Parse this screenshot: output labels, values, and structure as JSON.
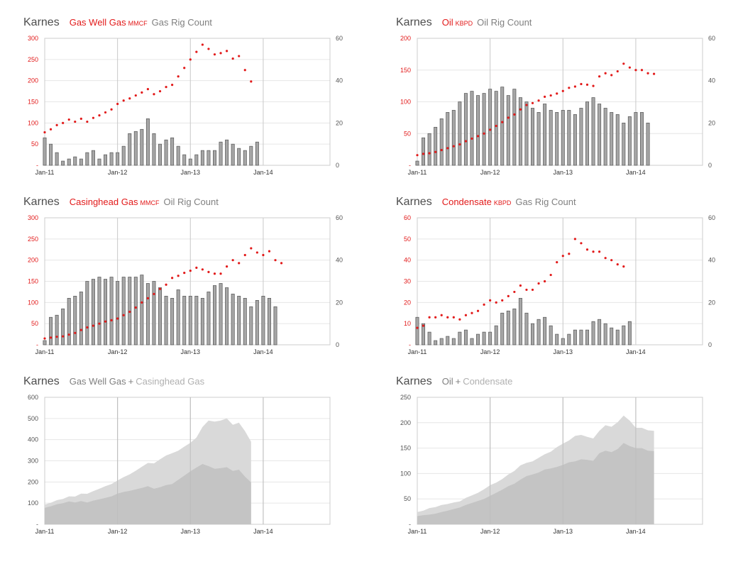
{
  "colors": {
    "red": "#e21a1a",
    "bar": "#a6a6a6",
    "bar_edge": "#555555",
    "area_back": "#d9d9d9",
    "area_front": "#c4c4c4",
    "grid": "#e6e6e6",
    "frame": "#cccccc"
  },
  "x_ticks": [
    "Jan-11",
    "Jan-12",
    "Jan-13",
    "Jan-14"
  ],
  "panels": [
    {
      "place": "Karnes",
      "series1": "Gas Well Gas",
      "unit1": "MMCF",
      "series2": "Gas Rig Count",
      "left_ticks": [
        "300",
        "250",
        "200",
        "150",
        "100",
        "50",
        "-"
      ],
      "right_ticks": [
        "60",
        "40",
        "20",
        "0"
      ]
    },
    {
      "place": "Karnes",
      "series1": "Oil",
      "unit1": "KBPD",
      "series2": "Oil Rig Count",
      "left_ticks": [
        "200",
        "150",
        "100",
        "50",
        "-"
      ],
      "right_ticks": [
        "60",
        "40",
        "20",
        "0"
      ]
    },
    {
      "place": "Karnes",
      "series1": "Casinghead Gas",
      "unit1": "MMCF",
      "series2": "Oil Rig Count",
      "left_ticks": [
        "300",
        "250",
        "200",
        "150",
        "100",
        "50",
        "-"
      ],
      "right_ticks": [
        "60",
        "40",
        "20",
        "0"
      ]
    },
    {
      "place": "Karnes",
      "series1": "Condensate",
      "unit1": "KBPD",
      "series2": "Gas Rig Count",
      "left_ticks": [
        "60",
        "50",
        "40",
        "30",
        "20",
        "10",
        "-"
      ],
      "right_ticks": [
        "60",
        "40",
        "20",
        "0"
      ]
    },
    {
      "place": "Karnes",
      "series1": "Gas Well Gas",
      "plus": "+",
      "series2": "Casinghead Gas",
      "left_ticks": [
        "600",
        "500",
        "400",
        "300",
        "200",
        "100",
        "-"
      ]
    },
    {
      "place": "Karnes",
      "series1": "Oil",
      "plus": "+",
      "series2": "Condensate",
      "left_ticks": [
        "250",
        "200",
        "150",
        "100",
        "50",
        "-"
      ]
    }
  ],
  "chart_data": [
    {
      "type": "bar+scatter",
      "title": "Gas Well Gas MMCF / Gas Rig Count",
      "x_start": "2011-01",
      "xlim_months": [
        0,
        47
      ],
      "ylim_left": [
        0,
        300
      ],
      "ylim_right": [
        0,
        60
      ],
      "series": [
        {
          "name": "Gas Rig Count",
          "axis": "right",
          "kind": "bar",
          "values": [
            13,
            10,
            6,
            2,
            3,
            4,
            3,
            6,
            7,
            3,
            5,
            6,
            6,
            9,
            15,
            16,
            17,
            22,
            15,
            10,
            12,
            13,
            9,
            5,
            3,
            5,
            7,
            7,
            7,
            11,
            12,
            10,
            8,
            7,
            9,
            11
          ]
        },
        {
          "name": "Gas Well Gas",
          "axis": "left",
          "kind": "dot",
          "values": [
            78,
            85,
            95,
            100,
            108,
            103,
            110,
            103,
            112,
            118,
            125,
            132,
            145,
            153,
            158,
            165,
            172,
            180,
            168,
            175,
            185,
            190,
            210,
            230,
            250,
            268,
            285,
            275,
            262,
            265,
            270,
            252,
            258,
            225,
            198
          ]
        }
      ]
    },
    {
      "type": "bar+scatter",
      "title": "Oil KBPD / Oil Rig Count",
      "x_start": "2011-01",
      "xlim_months": [
        0,
        47
      ],
      "ylim_left": [
        0,
        200
      ],
      "ylim_right": [
        0,
        60
      ],
      "series": [
        {
          "name": "Oil Rig Count",
          "axis": "right",
          "kind": "bar",
          "values": [
            2,
            13,
            15,
            18,
            22,
            25,
            26,
            30,
            34,
            35,
            33,
            34,
            36,
            35,
            37,
            33,
            36,
            32,
            30,
            27,
            25,
            29,
            26,
            25,
            26,
            26,
            24,
            27,
            30,
            32,
            29,
            27,
            25,
            24,
            20,
            23,
            25,
            25,
            20
          ]
        },
        {
          "name": "Oil",
          "axis": "left",
          "kind": "dot",
          "values": [
            16,
            18,
            19,
            21,
            24,
            27,
            30,
            33,
            38,
            42,
            46,
            50,
            56,
            62,
            68,
            75,
            80,
            88,
            95,
            98,
            102,
            108,
            110,
            113,
            117,
            122,
            124,
            128,
            127,
            125,
            140,
            145,
            142,
            148,
            160,
            154,
            150,
            150,
            145,
            144
          ]
        }
      ]
    },
    {
      "type": "bar+scatter",
      "title": "Casinghead Gas MMCF / Oil Rig Count",
      "x_start": "2011-01",
      "xlim_months": [
        0,
        47
      ],
      "ylim_left": [
        0,
        300
      ],
      "ylim_right": [
        0,
        60
      ],
      "series": [
        {
          "name": "Oil Rig Count",
          "axis": "right",
          "kind": "bar",
          "values": [
            2,
            13,
            14,
            17,
            22,
            23,
            25,
            30,
            31,
            32,
            31,
            32,
            30,
            32,
            32,
            32,
            33,
            29,
            30,
            27,
            23,
            22,
            26,
            23,
            23,
            23,
            22,
            25,
            28,
            29,
            27,
            24,
            23,
            22,
            18,
            21,
            23,
            22,
            18
          ]
        },
        {
          "name": "Casinghead Gas",
          "axis": "left",
          "kind": "dot",
          "values": [
            15,
            17,
            19,
            20,
            24,
            28,
            35,
            41,
            45,
            50,
            55,
            58,
            62,
            70,
            78,
            88,
            100,
            110,
            120,
            132,
            142,
            158,
            163,
            170,
            175,
            182,
            178,
            172,
            168,
            168,
            185,
            200,
            193,
            212,
            228,
            218,
            212,
            221,
            200,
            193
          ]
        }
      ]
    },
    {
      "type": "bar+scatter",
      "title": "Condensate KBPD / Gas Rig Count",
      "x_start": "2011-01",
      "xlim_months": [
        0,
        47
      ],
      "ylim_left": [
        0,
        60
      ],
      "ylim_right": [
        0,
        60
      ],
      "series": [
        {
          "name": "Gas Rig Count",
          "axis": "right",
          "kind": "bar",
          "values": [
            13,
            10,
            6,
            2,
            3,
            4,
            3,
            6,
            7,
            3,
            5,
            6,
            6,
            9,
            15,
            16,
            17,
            22,
            15,
            10,
            12,
            13,
            9,
            5,
            3,
            5,
            7,
            7,
            7,
            11,
            12,
            10,
            8,
            7,
            9,
            11
          ]
        },
        {
          "name": "Condensate",
          "axis": "left",
          "kind": "dot",
          "values": [
            8,
            9,
            13,
            13,
            14,
            13,
            13,
            12,
            14,
            15,
            16,
            19,
            21,
            20,
            21,
            23,
            25,
            28,
            26,
            26,
            29,
            30,
            33,
            39,
            42,
            43,
            50,
            48,
            45,
            44,
            44,
            41,
            40,
            38,
            37
          ]
        }
      ]
    },
    {
      "type": "area",
      "title": "Gas Well Gas + Casinghead Gas",
      "x_start": "2011-01",
      "xlim_months": [
        0,
        47
      ],
      "ylim": [
        0,
        600
      ],
      "series": [
        {
          "name": "Gas Well Gas + Casinghead Gas",
          "values": [
            93,
            102,
            114,
            120,
            132,
            131,
            145,
            144,
            157,
            168,
            180,
            190,
            207,
            223,
            236,
            253,
            272,
            290,
            288,
            307,
            325,
            336,
            348,
            367,
            385,
            410,
            460,
            490,
            485,
            490,
            500,
            470,
            480,
            440,
            390
          ]
        },
        {
          "name": "Gas Well Gas",
          "values": [
            78,
            85,
            95,
            100,
            108,
            103,
            110,
            103,
            112,
            118,
            125,
            132,
            145,
            153,
            158,
            165,
            172,
            180,
            168,
            175,
            185,
            190,
            210,
            230,
            250,
            268,
            285,
            275,
            262,
            265,
            270,
            252,
            258,
            225,
            198
          ]
        }
      ]
    },
    {
      "type": "area",
      "title": "Oil + Condensate",
      "x_start": "2011-01",
      "xlim_months": [
        0,
        47
      ],
      "ylim": [
        0,
        250
      ],
      "series": [
        {
          "name": "Oil + Condensate",
          "values": [
            24,
            27,
            32,
            34,
            38,
            40,
            43,
            45,
            52,
            57,
            62,
            69,
            77,
            82,
            89,
            98,
            105,
            116,
            121,
            124,
            131,
            138,
            143,
            152,
            159,
            165,
            174,
            176,
            172,
            169,
            184,
            195,
            192,
            201,
            214,
            204,
            190,
            190,
            185,
            184
          ]
        },
        {
          "name": "Oil",
          "values": [
            16,
            18,
            19,
            21,
            24,
            27,
            30,
            33,
            38,
            42,
            46,
            50,
            56,
            62,
            68,
            75,
            80,
            88,
            95,
            98,
            102,
            108,
            110,
            113,
            117,
            122,
            124,
            128,
            127,
            125,
            140,
            145,
            142,
            148,
            160,
            154,
            150,
            150,
            145,
            144
          ]
        }
      ]
    }
  ]
}
